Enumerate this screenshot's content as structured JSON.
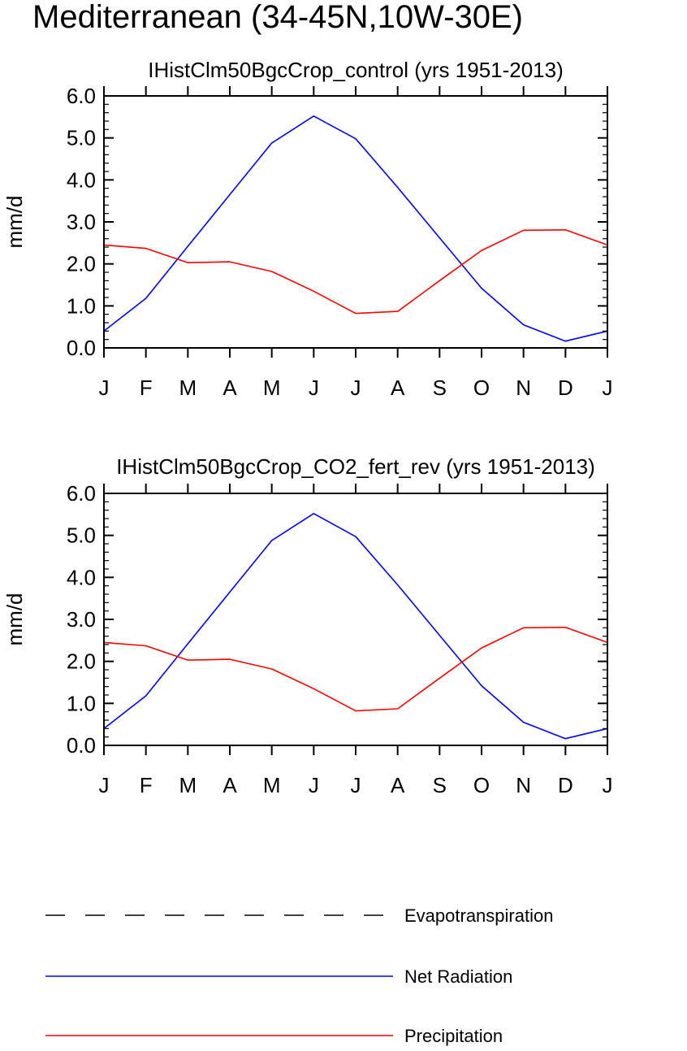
{
  "figure": {
    "title": "Mediterranean (34-45N,10W-30E)"
  },
  "colors": {
    "net_radiation": "#0000ff",
    "precipitation": "#ff0000",
    "evapotranspiration": "#000000",
    "axes": "#000000"
  },
  "legend": {
    "items": [
      {
        "label": "Evapotranspiration",
        "style": "dashed",
        "color": "#000000"
      },
      {
        "label": "Net Radiation",
        "style": "solid",
        "color": "#0000ff"
      },
      {
        "label": "Precipitation",
        "style": "solid",
        "color": "#ff0000"
      }
    ]
  },
  "chart_data": [
    {
      "type": "line",
      "title": "IHistClm50BgcCrop_control (yrs 1951-2013)",
      "ylabel": "mm/d",
      "xlabel": "",
      "ylim": [
        0,
        6
      ],
      "y_ticks": [
        "0.0",
        "1.0",
        "2.0",
        "3.0",
        "4.0",
        "5.0",
        "6.0"
      ],
      "categories": [
        "J",
        "F",
        "M",
        "A",
        "M",
        "J",
        "J",
        "A",
        "S",
        "O",
        "N",
        "D",
        "J"
      ],
      "series": [
        {
          "name": "Net Radiation",
          "color": "#0000ff",
          "values": [
            0.4,
            1.18,
            2.42,
            3.65,
            4.88,
            5.52,
            4.98,
            3.82,
            2.62,
            1.42,
            0.55,
            0.16,
            0.4
          ]
        },
        {
          "name": "Precipitation",
          "color": "#ff0000",
          "values": [
            2.45,
            2.37,
            2.03,
            2.05,
            1.82,
            1.35,
            0.82,
            0.87,
            1.6,
            2.32,
            2.8,
            2.81,
            2.45
          ]
        }
      ]
    },
    {
      "type": "line",
      "title": "IHistClm50BgcCrop_CO2_fert_rev (yrs 1951-2013)",
      "ylabel": "mm/d",
      "xlabel": "",
      "ylim": [
        0,
        6
      ],
      "y_ticks": [
        "0.0",
        "1.0",
        "2.0",
        "3.0",
        "4.0",
        "5.0",
        "6.0"
      ],
      "categories": [
        "J",
        "F",
        "M",
        "A",
        "M",
        "J",
        "J",
        "A",
        "S",
        "O",
        "N",
        "D",
        "J"
      ],
      "series": [
        {
          "name": "Net Radiation",
          "color": "#0000ff",
          "values": [
            0.4,
            1.18,
            2.42,
            3.65,
            4.88,
            5.52,
            4.97,
            3.82,
            2.62,
            1.42,
            0.55,
            0.16,
            0.4
          ]
        },
        {
          "name": "Precipitation",
          "color": "#ff0000",
          "values": [
            2.45,
            2.37,
            2.03,
            2.05,
            1.82,
            1.35,
            0.82,
            0.87,
            1.6,
            2.32,
            2.8,
            2.81,
            2.45
          ]
        }
      ]
    }
  ]
}
